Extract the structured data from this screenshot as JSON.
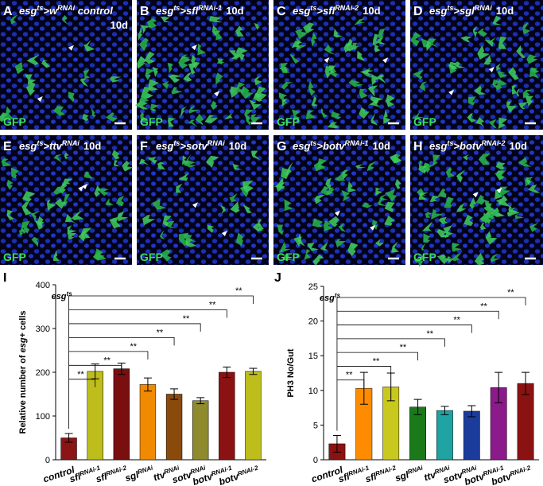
{
  "panels": [
    {
      "letter": "A",
      "title_parts": [
        "esg",
        "ts",
        ">w",
        "RNAi",
        " control"
      ],
      "duration": "10d",
      "stain": "GFP"
    },
    {
      "letter": "B",
      "title_parts": [
        "esg",
        "ts",
        ">sfl",
        "RNAi-1"
      ],
      "duration": "10d",
      "stain": "GFP"
    },
    {
      "letter": "C",
      "title_parts": [
        "esg",
        "ts",
        ">sfl",
        "RNAi-2"
      ],
      "duration": "10d",
      "stain": "GFP"
    },
    {
      "letter": "D",
      "title_parts": [
        "esg",
        "ts",
        ">sgl",
        "RNAi"
      ],
      "duration": "10d",
      "stain": "GFP"
    },
    {
      "letter": "E",
      "title_parts": [
        "esg",
        "ts",
        ">ttv",
        "RNAi"
      ],
      "duration": "10d",
      "stain": "GFP"
    },
    {
      "letter": "F",
      "title_parts": [
        "esg",
        "ts",
        ">sotv",
        "RNAi"
      ],
      "duration": "10d",
      "stain": "GFP"
    },
    {
      "letter": "G",
      "title_parts": [
        "esg",
        "ts",
        ">botv",
        "RNAi-1"
      ],
      "duration": "10d",
      "stain": "GFP"
    },
    {
      "letter": "H",
      "title_parts": [
        "esg",
        "ts",
        ">botv",
        "RNAi-2"
      ],
      "duration": "10d",
      "stain": "GFP"
    }
  ],
  "chart_data": [
    {
      "type": "bar",
      "label": "I",
      "ylabel_parts": [
        "Relative number of ",
        "esg",
        "+ cells"
      ],
      "group_label": "esg",
      "group_label_sup": "ts",
      "categories": [
        "control",
        "sfl",
        "sfl",
        "sgl",
        "ttv",
        "sotv",
        "botv",
        "botv"
      ],
      "category_superscripts": [
        null,
        "RNAi-1",
        "RNAi-2",
        "RNAi",
        "RNAi",
        "RNAi",
        "RNAi-1",
        "RNAi-2"
      ],
      "values": [
        50,
        202,
        208,
        172,
        150,
        135,
        200,
        202
      ],
      "errors": [
        10,
        17,
        13,
        15,
        12,
        7,
        12,
        7
      ],
      "colors": [
        "#8b1414",
        "#bdbd1c",
        "#7a0f0f",
        "#f08a00",
        "#8a4a0c",
        "#8f8a2c",
        "#8b1212",
        "#bdbd1c"
      ],
      "significance": [
        "**",
        "**",
        "**",
        "**",
        "**",
        "**",
        "**"
      ],
      "ylim": [
        0,
        400
      ],
      "yticks": [
        0,
        100,
        200,
        300,
        400
      ]
    },
    {
      "type": "bar",
      "label": "J",
      "ylabel_parts": [
        "PH3 No/Gut"
      ],
      "group_label": "esg",
      "group_label_sup": "ts",
      "categories": [
        "control",
        "sfl",
        "sfl",
        "sgl",
        "ttv",
        "sotv",
        "botv",
        "botv"
      ],
      "category_superscripts": [
        null,
        "RNAi-1",
        "RNAi-2",
        "RNAi",
        "RNAi",
        "RNAi",
        "RNAi-1",
        "RNAi-2"
      ],
      "values": [
        2.3,
        10.3,
        10.5,
        7.6,
        7.1,
        7.0,
        10.4,
        11.0
      ],
      "errors": [
        1.2,
        2.3,
        2.0,
        1.1,
        0.6,
        0.8,
        2.2,
        1.6
      ],
      "colors": [
        "#8b1212",
        "#ff8c00",
        "#c8c81e",
        "#1a7a1a",
        "#1fa3a3",
        "#1c3c9c",
        "#8b1a8b",
        "#8b1212"
      ],
      "significance": [
        "**",
        "**",
        "**",
        "**",
        "**",
        "**",
        "**"
      ],
      "ylim": [
        0,
        25
      ],
      "yticks": [
        0,
        5,
        10,
        15,
        20,
        25
      ]
    }
  ]
}
